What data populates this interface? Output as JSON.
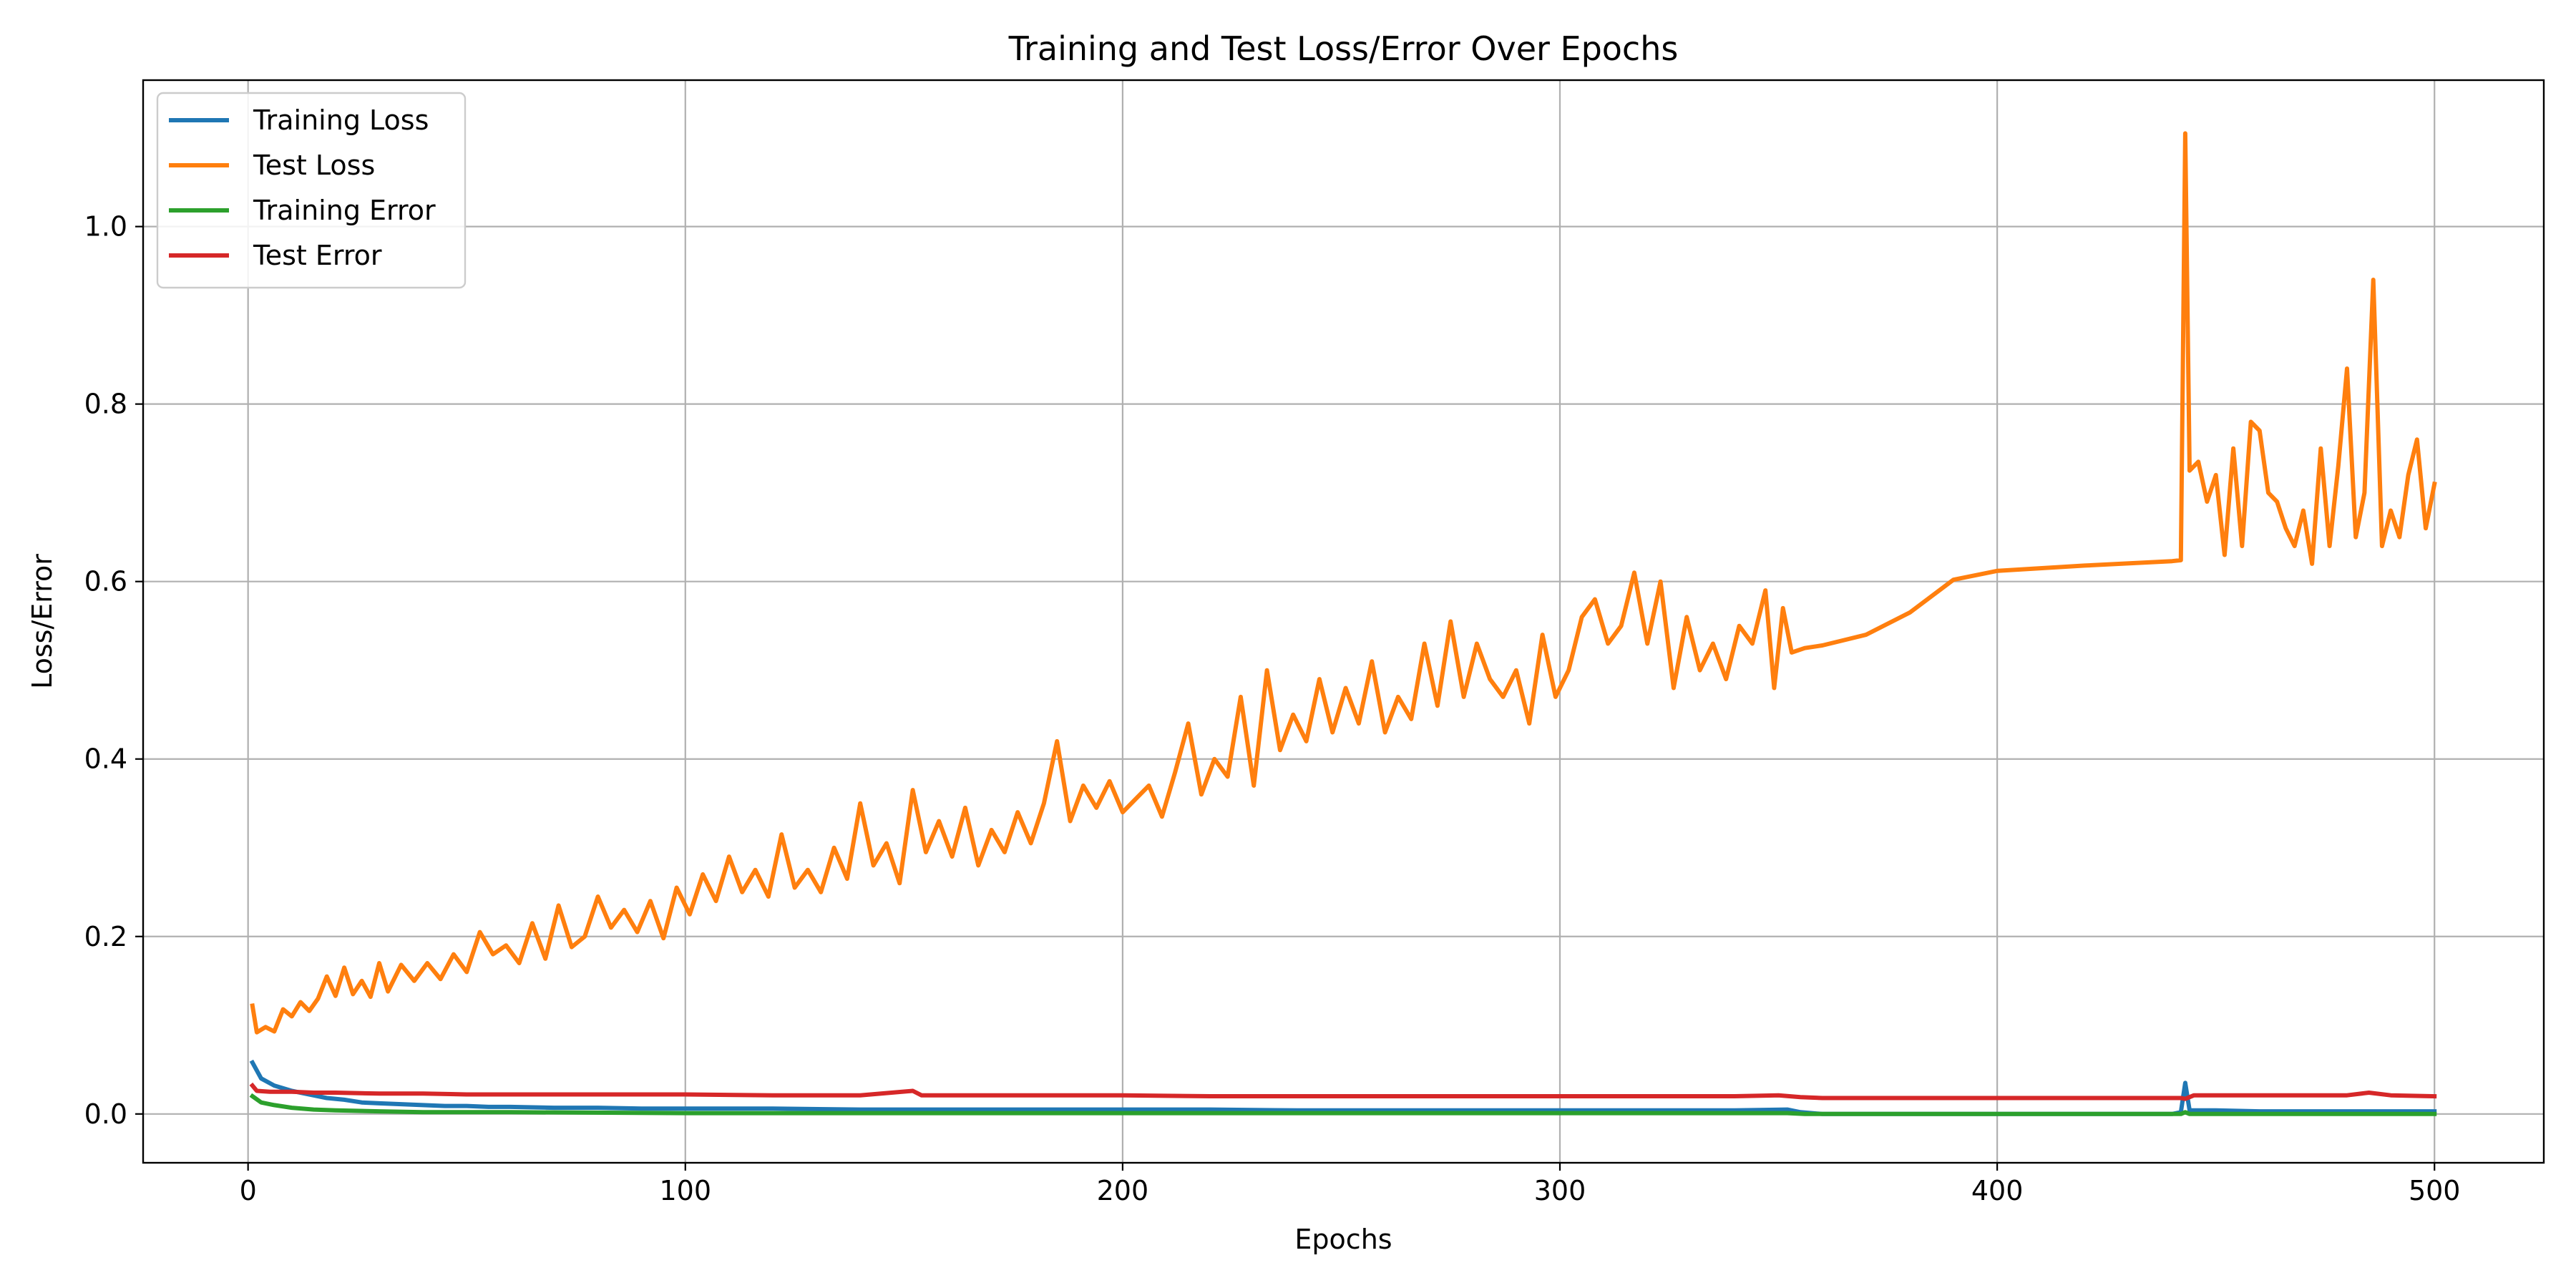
{
  "chart_data": {
    "type": "line",
    "title": "Training and Test Loss/Error Over Epochs",
    "xlabel": "Epochs",
    "ylabel": "Loss/Error",
    "xlim": [
      -24,
      525
    ],
    "ylim": [
      -0.055,
      1.165
    ],
    "x_ticks": [
      0,
      100,
      200,
      300,
      400,
      500
    ],
    "x_tick_labels": [
      "0",
      "100",
      "200",
      "300",
      "400",
      "500"
    ],
    "y_ticks": [
      0.0,
      0.2,
      0.4,
      0.6,
      0.8,
      1.0
    ],
    "y_tick_labels": [
      "0.0",
      "0.2",
      "0.4",
      "0.6",
      "0.8",
      "1.0"
    ],
    "grid": true,
    "legend_position": "upper-left",
    "series": [
      {
        "name": "Training Loss",
        "color": "#1f77b4",
        "points": [
          [
            1,
            0.058
          ],
          [
            3,
            0.04
          ],
          [
            6,
            0.032
          ],
          [
            10,
            0.026
          ],
          [
            14,
            0.022
          ],
          [
            18,
            0.018
          ],
          [
            22,
            0.016
          ],
          [
            26,
            0.013
          ],
          [
            30,
            0.012
          ],
          [
            35,
            0.011
          ],
          [
            40,
            0.01
          ],
          [
            45,
            0.009
          ],
          [
            50,
            0.009
          ],
          [
            55,
            0.008
          ],
          [
            60,
            0.008
          ],
          [
            70,
            0.007
          ],
          [
            80,
            0.007
          ],
          [
            90,
            0.006
          ],
          [
            100,
            0.006
          ],
          [
            120,
            0.006
          ],
          [
            140,
            0.005
          ],
          [
            160,
            0.005
          ],
          [
            180,
            0.005
          ],
          [
            200,
            0.005
          ],
          [
            220,
            0.005
          ],
          [
            240,
            0.004
          ],
          [
            260,
            0.004
          ],
          [
            280,
            0.004
          ],
          [
            300,
            0.004
          ],
          [
            320,
            0.004
          ],
          [
            340,
            0.004
          ],
          [
            352,
            0.005
          ],
          [
            355,
            0.002
          ],
          [
            360,
            0.0
          ],
          [
            400,
            0.0
          ],
          [
            440,
            0.0
          ],
          [
            442,
            0.002
          ],
          [
            443,
            0.035
          ],
          [
            444,
            0.004
          ],
          [
            450,
            0.004
          ],
          [
            460,
            0.003
          ],
          [
            470,
            0.003
          ],
          [
            480,
            0.003
          ],
          [
            490,
            0.003
          ],
          [
            500,
            0.003
          ]
        ]
      },
      {
        "name": "Test Loss",
        "color": "#ff7f0e",
        "points": [
          [
            1,
            0.122
          ],
          [
            2,
            0.092
          ],
          [
            4,
            0.098
          ],
          [
            6,
            0.093
          ],
          [
            8,
            0.118
          ],
          [
            10,
            0.11
          ],
          [
            12,
            0.126
          ],
          [
            14,
            0.116
          ],
          [
            16,
            0.13
          ],
          [
            18,
            0.155
          ],
          [
            20,
            0.133
          ],
          [
            22,
            0.165
          ],
          [
            24,
            0.135
          ],
          [
            26,
            0.15
          ],
          [
            28,
            0.132
          ],
          [
            30,
            0.17
          ],
          [
            32,
            0.138
          ],
          [
            35,
            0.168
          ],
          [
            38,
            0.15
          ],
          [
            41,
            0.17
          ],
          [
            44,
            0.152
          ],
          [
            47,
            0.18
          ],
          [
            50,
            0.16
          ],
          [
            53,
            0.205
          ],
          [
            56,
            0.18
          ],
          [
            59,
            0.19
          ],
          [
            62,
            0.17
          ],
          [
            65,
            0.215
          ],
          [
            68,
            0.175
          ],
          [
            71,
            0.235
          ],
          [
            74,
            0.188
          ],
          [
            77,
            0.2
          ],
          [
            80,
            0.245
          ],
          [
            83,
            0.21
          ],
          [
            86,
            0.23
          ],
          [
            89,
            0.205
          ],
          [
            92,
            0.24
          ],
          [
            95,
            0.198
          ],
          [
            98,
            0.255
          ],
          [
            101,
            0.225
          ],
          [
            104,
            0.27
          ],
          [
            107,
            0.24
          ],
          [
            110,
            0.29
          ],
          [
            113,
            0.25
          ],
          [
            116,
            0.275
          ],
          [
            119,
            0.245
          ],
          [
            122,
            0.315
          ],
          [
            125,
            0.255
          ],
          [
            128,
            0.275
          ],
          [
            131,
            0.25
          ],
          [
            134,
            0.3
          ],
          [
            137,
            0.265
          ],
          [
            140,
            0.35
          ],
          [
            143,
            0.28
          ],
          [
            146,
            0.305
          ],
          [
            149,
            0.26
          ],
          [
            152,
            0.365
          ],
          [
            155,
            0.295
          ],
          [
            158,
            0.33
          ],
          [
            161,
            0.29
          ],
          [
            164,
            0.345
          ],
          [
            167,
            0.28
          ],
          [
            170,
            0.32
          ],
          [
            173,
            0.295
          ],
          [
            176,
            0.34
          ],
          [
            179,
            0.305
          ],
          [
            182,
            0.35
          ],
          [
            185,
            0.42
          ],
          [
            188,
            0.33
          ],
          [
            191,
            0.37
          ],
          [
            194,
            0.345
          ],
          [
            197,
            0.375
          ],
          [
            200,
            0.34
          ],
          [
            203,
            0.355
          ],
          [
            206,
            0.37
          ],
          [
            209,
            0.335
          ],
          [
            212,
            0.385
          ],
          [
            215,
            0.44
          ],
          [
            218,
            0.36
          ],
          [
            221,
            0.4
          ],
          [
            224,
            0.38
          ],
          [
            227,
            0.47
          ],
          [
            230,
            0.37
          ],
          [
            233,
            0.5
          ],
          [
            236,
            0.41
          ],
          [
            239,
            0.45
          ],
          [
            242,
            0.42
          ],
          [
            245,
            0.49
          ],
          [
            248,
            0.43
          ],
          [
            251,
            0.48
          ],
          [
            254,
            0.44
          ],
          [
            257,
            0.51
          ],
          [
            260,
            0.43
          ],
          [
            263,
            0.47
          ],
          [
            266,
            0.445
          ],
          [
            269,
            0.53
          ],
          [
            272,
            0.46
          ],
          [
            275,
            0.555
          ],
          [
            278,
            0.47
          ],
          [
            281,
            0.53
          ],
          [
            284,
            0.49
          ],
          [
            287,
            0.47
          ],
          [
            290,
            0.5
          ],
          [
            293,
            0.44
          ],
          [
            296,
            0.54
          ],
          [
            299,
            0.47
          ],
          [
            302,
            0.5
          ],
          [
            305,
            0.56
          ],
          [
            308,
            0.58
          ],
          [
            311,
            0.53
          ],
          [
            314,
            0.55
          ],
          [
            317,
            0.61
          ],
          [
            320,
            0.53
          ],
          [
            323,
            0.6
          ],
          [
            326,
            0.48
          ],
          [
            329,
            0.56
          ],
          [
            332,
            0.5
          ],
          [
            335,
            0.53
          ],
          [
            338,
            0.49
          ],
          [
            341,
            0.55
          ],
          [
            344,
            0.53
          ],
          [
            347,
            0.59
          ],
          [
            349,
            0.48
          ],
          [
            351,
            0.57
          ],
          [
            353,
            0.52
          ],
          [
            356,
            0.525
          ],
          [
            360,
            0.528
          ],
          [
            370,
            0.54
          ],
          [
            380,
            0.565
          ],
          [
            390,
            0.602
          ],
          [
            400,
            0.612
          ],
          [
            420,
            0.618
          ],
          [
            440,
            0.623
          ],
          [
            442,
            0.624
          ],
          [
            443,
            1.105
          ],
          [
            444,
            0.725
          ],
          [
            446,
            0.735
          ],
          [
            448,
            0.69
          ],
          [
            450,
            0.72
          ],
          [
            452,
            0.63
          ],
          [
            454,
            0.75
          ],
          [
            456,
            0.64
          ],
          [
            458,
            0.78
          ],
          [
            460,
            0.77
          ],
          [
            462,
            0.7
          ],
          [
            464,
            0.69
          ],
          [
            466,
            0.66
          ],
          [
            468,
            0.64
          ],
          [
            470,
            0.68
          ],
          [
            472,
            0.62
          ],
          [
            474,
            0.75
          ],
          [
            476,
            0.64
          ],
          [
            478,
            0.73
          ],
          [
            480,
            0.84
          ],
          [
            482,
            0.65
          ],
          [
            484,
            0.7
          ],
          [
            486,
            0.94
          ],
          [
            488,
            0.64
          ],
          [
            490,
            0.68
          ],
          [
            492,
            0.65
          ],
          [
            494,
            0.72
          ],
          [
            496,
            0.76
          ],
          [
            498,
            0.66
          ],
          [
            500,
            0.71
          ]
        ]
      },
      {
        "name": "Training Error",
        "color": "#2ca02c",
        "points": [
          [
            1,
            0.02
          ],
          [
            3,
            0.013
          ],
          [
            6,
            0.01
          ],
          [
            10,
            0.007
          ],
          [
            15,
            0.005
          ],
          [
            20,
            0.004
          ],
          [
            30,
            0.003
          ],
          [
            40,
            0.002
          ],
          [
            60,
            0.002
          ],
          [
            100,
            0.001
          ],
          [
            200,
            0.001
          ],
          [
            300,
            0.001
          ],
          [
            352,
            0.001
          ],
          [
            356,
            0.0
          ],
          [
            400,
            0.0
          ],
          [
            442,
            0.0
          ],
          [
            443,
            0.002
          ],
          [
            444,
            0.0
          ],
          [
            500,
            0.0
          ]
        ]
      },
      {
        "name": "Test Error",
        "color": "#d62728",
        "points": [
          [
            1,
            0.032
          ],
          [
            2,
            0.026
          ],
          [
            5,
            0.025
          ],
          [
            10,
            0.025
          ],
          [
            15,
            0.024
          ],
          [
            20,
            0.024
          ],
          [
            30,
            0.023
          ],
          [
            40,
            0.023
          ],
          [
            50,
            0.022
          ],
          [
            60,
            0.022
          ],
          [
            80,
            0.022
          ],
          [
            100,
            0.022
          ],
          [
            120,
            0.021
          ],
          [
            140,
            0.021
          ],
          [
            152,
            0.026
          ],
          [
            154,
            0.021
          ],
          [
            180,
            0.021
          ],
          [
            200,
            0.021
          ],
          [
            220,
            0.02
          ],
          [
            240,
            0.02
          ],
          [
            260,
            0.02
          ],
          [
            280,
            0.02
          ],
          [
            300,
            0.02
          ],
          [
            320,
            0.02
          ],
          [
            340,
            0.02
          ],
          [
            350,
            0.021
          ],
          [
            355,
            0.019
          ],
          [
            360,
            0.018
          ],
          [
            400,
            0.018
          ],
          [
            442,
            0.018
          ],
          [
            443,
            0.017
          ],
          [
            445,
            0.021
          ],
          [
            460,
            0.021
          ],
          [
            480,
            0.021
          ],
          [
            485,
            0.024
          ],
          [
            490,
            0.021
          ],
          [
            500,
            0.02
          ]
        ]
      }
    ]
  }
}
